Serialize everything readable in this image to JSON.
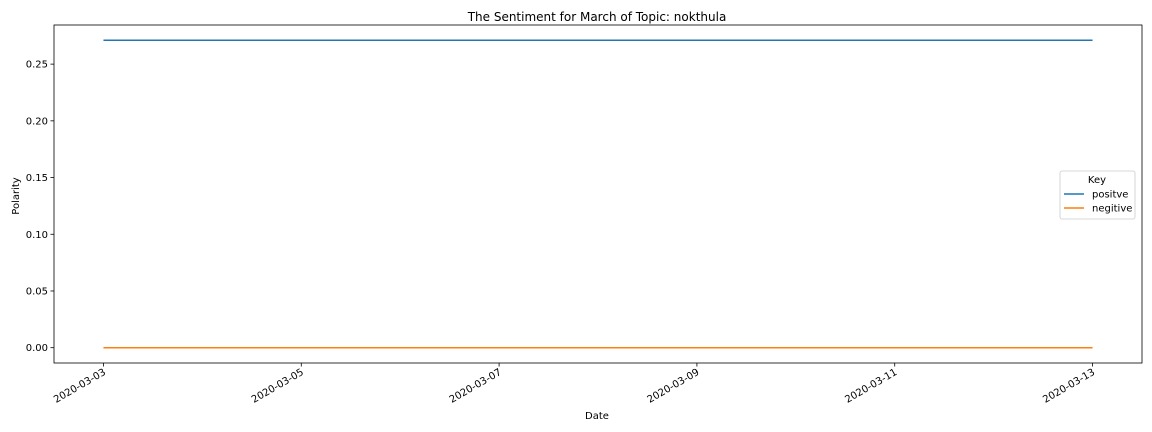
{
  "chart_data": {
    "type": "line",
    "title": "The Sentiment for March of Topic: nokthula",
    "xlabel": "Date",
    "ylabel": "Polarity",
    "x": [
      "2020-03-03",
      "2020-03-13"
    ],
    "xticks": [
      "2020-03-03",
      "2020-03-05",
      "2020-03-07",
      "2020-03-09",
      "2020-03-11",
      "2020-03-13"
    ],
    "yticks": [
      "0.00",
      "0.05",
      "0.10",
      "0.15",
      "0.20",
      "0.25"
    ],
    "ylim": [
      -0.0135,
      0.2845
    ],
    "xlim": [
      "2020-03-02T12:00:00",
      "2020-03-13T12:00:00"
    ],
    "series": [
      {
        "name": "positve",
        "color": "#1f77b4",
        "values": [
          0.271,
          0.271
        ]
      },
      {
        "name": "negitive",
        "color": "#ff7f0e",
        "values": [
          0.0,
          0.0
        ]
      }
    ],
    "legend": {
      "title": "Key",
      "placement": "center-right"
    },
    "grid": false
  }
}
